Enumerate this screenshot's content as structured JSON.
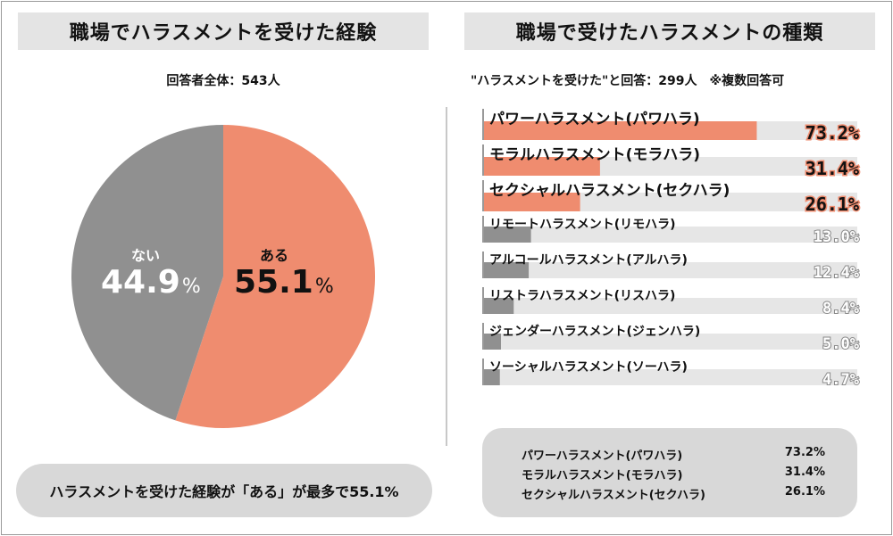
{
  "left": {
    "title": "職場でハラスメントを受けた経験",
    "respondents": "回答者全体：543人",
    "callout": "ハラスメントを受けた経験が「ある」が最多で55.1%"
  },
  "right": {
    "title": "職場で受けたハラスメントの種類",
    "respondents": "\"ハラスメントを受けた\"と回答：299人　※複数回答可"
  },
  "summary": [
    {
      "label": "パワーハラスメント(パワハラ)",
      "value": "73.2%"
    },
    {
      "label": "モラルハラスメント(モラハラ)",
      "value": "31.4%"
    },
    {
      "label": "セクシャルハラスメント(セクハラ)",
      "value": "26.1%"
    }
  ],
  "colors": {
    "accent": "#ef8c6f",
    "gray": "#909090",
    "track": "#e6e6e6"
  },
  "chart_data": [
    {
      "type": "pie",
      "title": "職場でハラスメントを受けた経験",
      "slices": [
        {
          "label": "ある",
          "value": 55.1,
          "display": "55.1",
          "unit": "%"
        },
        {
          "label": "ない",
          "value": 44.9,
          "display": "44.9",
          "unit": "%"
        }
      ]
    },
    {
      "type": "bar",
      "title": "職場で受けたハラスメントの種類",
      "categories": [
        "パワーハラスメント(パワハラ)",
        "モラルハラスメント(モラハラ)",
        "セクシャルハラスメント(セクハラ)",
        "リモートハラスメント(リモハラ)",
        "アルコールハラスメント(アルハラ)",
        "リストラハラスメント(リスハラ)",
        "ジェンダーハラスメント(ジェンハラ)",
        "ソーシャルハラスメント(ソーハラ)"
      ],
      "values": [
        73.2,
        31.4,
        26.1,
        13.0,
        12.4,
        8.4,
        5.0,
        4.7
      ],
      "value_labels": [
        "73.2%",
        "31.4%",
        "26.1%",
        "13.0%",
        "12.4%",
        "8.4%",
        "5.0%",
        "4.7%"
      ],
      "highlighted": [
        true,
        true,
        true,
        false,
        false,
        false,
        false,
        false
      ],
      "xlim": [
        0,
        100
      ]
    }
  ]
}
